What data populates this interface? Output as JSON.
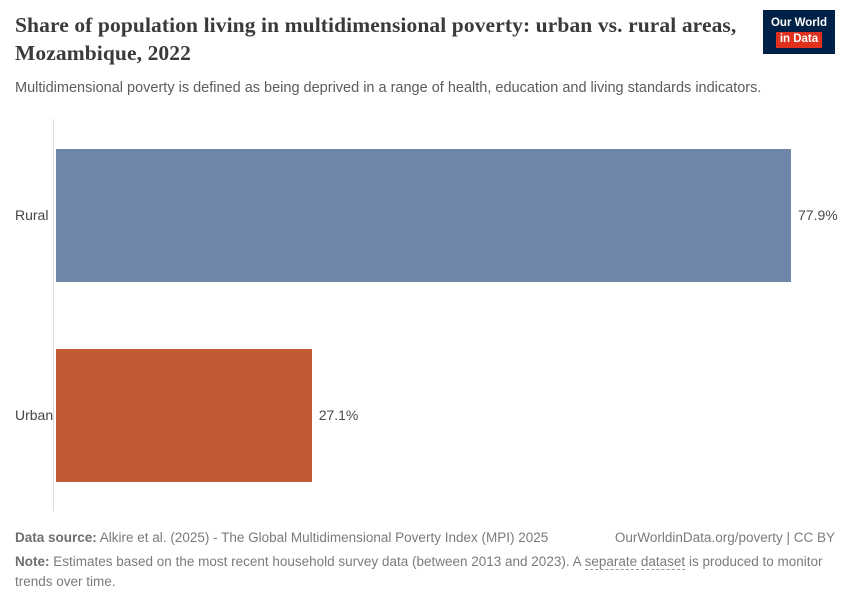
{
  "header": {
    "title": "Share of population living in multidimensional poverty: urban vs. rural areas, Mozambique, 2022",
    "subtitle": "Multidimensional poverty is defined as being deprived in a range of health, education and living standards indicators.",
    "logo": {
      "line1": "Our World",
      "line2": "in Data",
      "bg_color": "#002147",
      "accent_color": "#e0301e"
    }
  },
  "chart_data": {
    "type": "bar",
    "orientation": "horizontal",
    "title": "Share of population living in multidimensional poverty: urban vs. rural areas, Mozambique, 2022",
    "categories": [
      "Rural",
      "Urban"
    ],
    "values": [
      77.9,
      27.1
    ],
    "value_labels": [
      "77.9%",
      "27.1%"
    ],
    "colors": [
      "#6e87a9",
      "#c25a33"
    ],
    "xlim": [
      0,
      77.9
    ],
    "grid": false,
    "legend": "none",
    "unit": "%"
  },
  "footer": {
    "datasource_label": "Data source:",
    "datasource_text": " Alkire et al. (2025) - The Global Multidimensional Poverty Index (MPI) 2025",
    "attribution": "OurWorldinData.org/poverty | CC BY",
    "note_label": "Note:",
    "note_pre": " Estimates based on the most recent household survey data (between 2013 and 2023). A ",
    "note_link": "separate dataset",
    "note_post": " is produced to monitor trends over time."
  }
}
